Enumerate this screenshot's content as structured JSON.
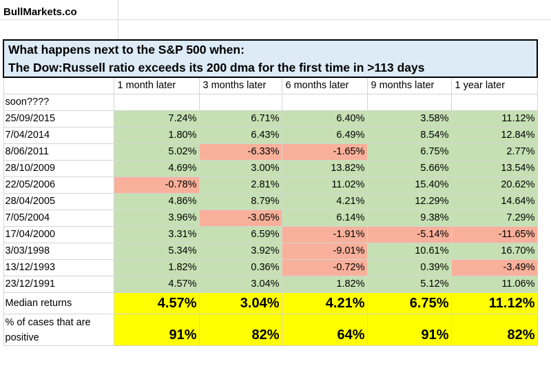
{
  "brand": "BullMarkets.co",
  "title_line1": "What happens next to the S&P 500 when:",
  "title_line2": "The Dow:Russell ratio exceeds its 200 dma for the first time in >113 days",
  "headers": [
    "1 month later",
    "3 months later",
    "6 months later",
    "9 months later",
    "1 year later"
  ],
  "soon_row_label": "soon????",
  "rows": [
    {
      "date": "25/09/2015",
      "values": [
        "7.24%",
        "6.71%",
        "6.40%",
        "3.58%",
        "11.12%"
      ],
      "colors": [
        "g",
        "g",
        "g",
        "g",
        "g"
      ]
    },
    {
      "date": "7/04/2014",
      "values": [
        "1.80%",
        "6.43%",
        "6.49%",
        "8.54%",
        "12.84%"
      ],
      "colors": [
        "g",
        "g",
        "g",
        "g",
        "g"
      ]
    },
    {
      "date": "8/06/2011",
      "values": [
        "5.02%",
        "-6.33%",
        "-1.65%",
        "6.75%",
        "2.77%"
      ],
      "colors": [
        "g",
        "r",
        "r",
        "g",
        "g"
      ]
    },
    {
      "date": "28/10/2009",
      "values": [
        "4.69%",
        "3.00%",
        "13.82%",
        "5.66%",
        "13.54%"
      ],
      "colors": [
        "g",
        "g",
        "g",
        "g",
        "g"
      ]
    },
    {
      "date": "22/05/2006",
      "values": [
        "-0.78%",
        "2.81%",
        "11.02%",
        "15.40%",
        "20.62%"
      ],
      "colors": [
        "r",
        "g",
        "g",
        "g",
        "g"
      ]
    },
    {
      "date": "28/04/2005",
      "values": [
        "4.86%",
        "8.79%",
        "4.21%",
        "12.29%",
        "14.64%"
      ],
      "colors": [
        "g",
        "g",
        "g",
        "g",
        "g"
      ]
    },
    {
      "date": "7/05/2004",
      "values": [
        "3.96%",
        "-3.05%",
        "6.14%",
        "9.38%",
        "7.29%"
      ],
      "colors": [
        "g",
        "r",
        "g",
        "g",
        "g"
      ]
    },
    {
      "date": "17/04/2000",
      "values": [
        "3.31%",
        "6.59%",
        "-1.91%",
        "-5.14%",
        "-11.65%"
      ],
      "colors": [
        "g",
        "g",
        "r",
        "r",
        "r"
      ]
    },
    {
      "date": "3/03/1998",
      "values": [
        "5.34%",
        "3.92%",
        "-9.01%",
        "10.61%",
        "16.70%"
      ],
      "colors": [
        "g",
        "g",
        "r",
        "g",
        "g"
      ]
    },
    {
      "date": "13/12/1993",
      "values": [
        "1.82%",
        "0.36%",
        "-0.72%",
        "0.39%",
        "-3.49%"
      ],
      "colors": [
        "g",
        "g",
        "r",
        "g",
        "r"
      ]
    },
    {
      "date": "23/12/1991",
      "values": [
        "4.57%",
        "3.04%",
        "1.82%",
        "5.12%",
        "11.06%"
      ],
      "colors": [
        "g",
        "g",
        "g",
        "g",
        "g"
      ]
    }
  ],
  "median": {
    "label": "Median returns",
    "values": [
      "4.57%",
      "3.04%",
      "4.21%",
      "6.75%",
      "11.12%"
    ]
  },
  "positive": {
    "label_line1": "% of cases that are",
    "label_line2": "positive",
    "values": [
      "91%",
      "82%",
      "64%",
      "91%",
      "82%"
    ]
  },
  "colors": {
    "green": "#c6e0b4",
    "red": "#f8b09a",
    "yellow": "#ffff00",
    "title_bg": "#ddebf7"
  }
}
